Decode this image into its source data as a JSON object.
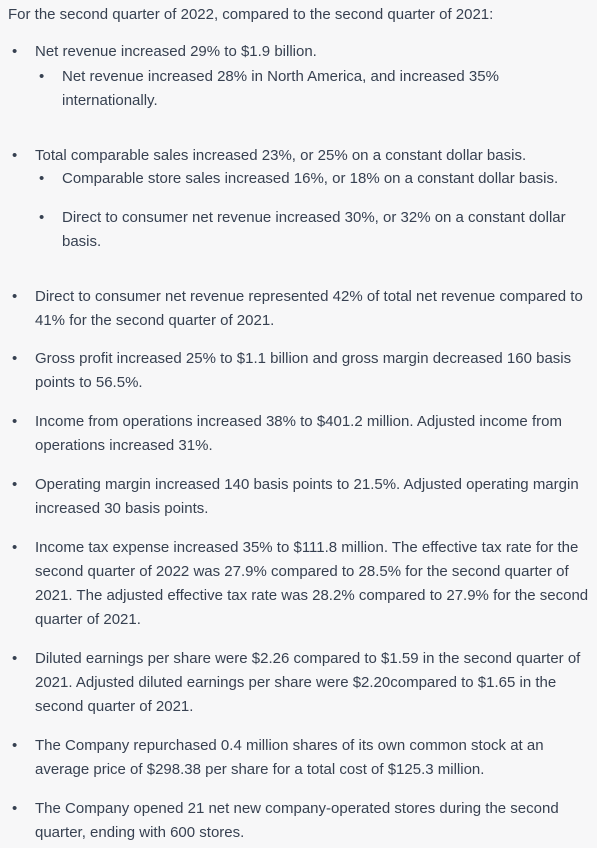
{
  "intro": "For the second quarter of 2022, compared to the second quarter of 2021:",
  "bullets": [
    {
      "text": "Net revenue increased 29% to $1.9 billion.",
      "sub_bullets": [
        "Net revenue increased 28% in North America, and increased 35% internationally."
      ]
    },
    {
      "text": "Total comparable sales increased 23%, or 25% on a constant dollar basis.",
      "sub_bullets": [
        "Comparable store sales increased 16%, or 18% on a constant dollar basis.",
        "Direct to consumer net revenue increased 30%, or 32% on a constant dollar basis."
      ]
    },
    {
      "text": "Direct to consumer net revenue represented 42% of total net revenue compared to 41% for the second quarter of 2021."
    },
    {
      "text": "Gross profit increased 25% to $1.1 billion and gross margin decreased 160 basis points to 56.5%."
    },
    {
      "text": "Income from operations increased 38% to $401.2 million. Adjusted income from operations increased 31%."
    },
    {
      "text": "Operating margin increased 140 basis points to 21.5%. Adjusted operating margin increased 30 basis points."
    },
    {
      "text": "Income tax expense increased 35% to $111.8 million. The effective tax rate for the second quarter of 2022 was 27.9% compared to 28.5% for the second quarter of 2021. The adjusted effective tax rate was 28.2% compared to 27.9% for the second quarter of 2021."
    },
    {
      "text": "Diluted earnings per share were $2.26 compared to $1.59 in the second quarter of 2021. Adjusted diluted earnings per share were $2.20compared to $1.65 in the second quarter of 2021."
    },
    {
      "text": "The Company repurchased 0.4 million shares of its own common stock at an average price of $298.38 per share for a total cost of $125.3 million."
    },
    {
      "text": "The Company opened 21 net new company-operated stores during the second quarter, ending with 600 stores."
    }
  ]
}
